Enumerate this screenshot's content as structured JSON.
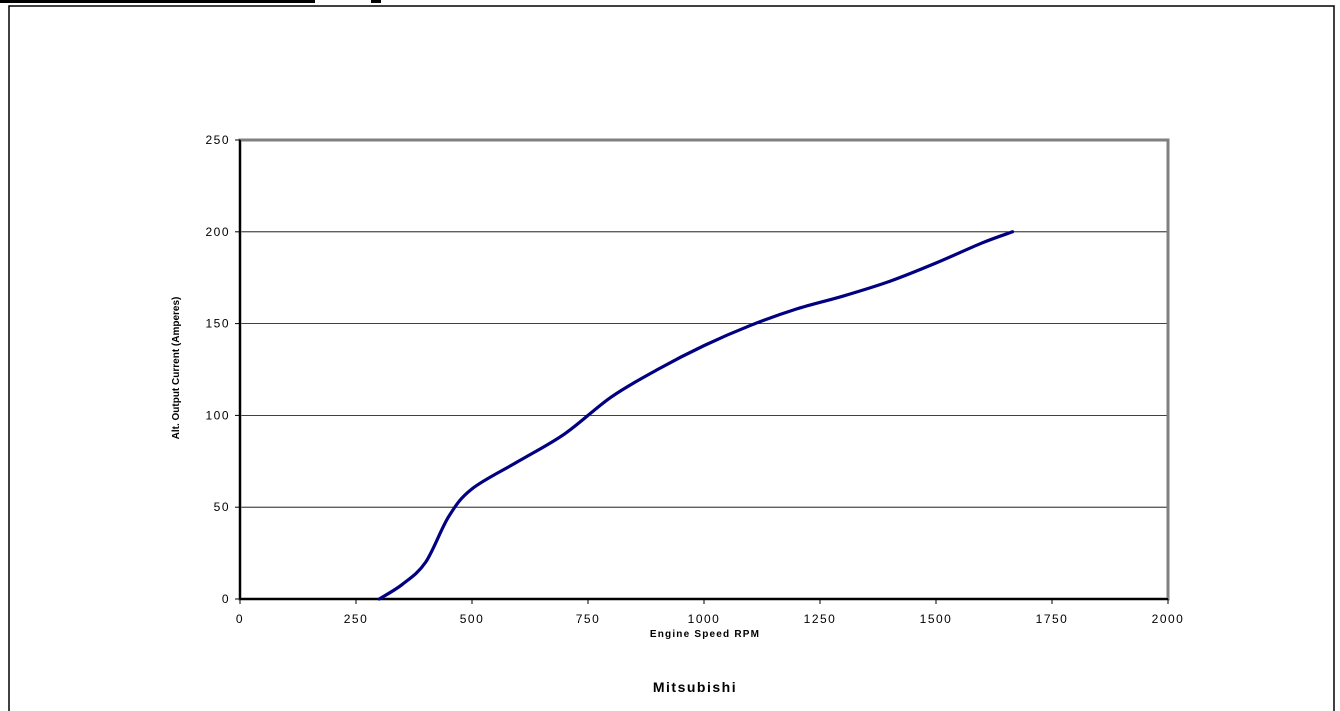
{
  "caption": "Mitsubishi",
  "chart_data": {
    "type": "line",
    "title": "",
    "xlabel": "Engine Speed RPM",
    "ylabel": "Alt. Output Current (Amperes)",
    "xlim": [
      0,
      2000
    ],
    "ylim": [
      0,
      250
    ],
    "x_ticks": [
      0,
      250,
      500,
      750,
      1000,
      1250,
      1500,
      1750,
      2000
    ],
    "y_ticks": [
      0,
      50,
      100,
      150,
      200,
      250
    ],
    "grid": "horizontal",
    "legend": "none",
    "series": [
      {
        "color": "#000080",
        "points": [
          [
            300,
            0
          ],
          [
            350,
            8
          ],
          [
            400,
            20
          ],
          [
            450,
            45
          ],
          [
            500,
            60
          ],
          [
            600,
            75
          ],
          [
            700,
            90
          ],
          [
            800,
            110
          ],
          [
            900,
            125
          ],
          [
            1000,
            138
          ],
          [
            1100,
            149
          ],
          [
            1200,
            158
          ],
          [
            1300,
            165
          ],
          [
            1400,
            173
          ],
          [
            1500,
            183
          ],
          [
            1600,
            194
          ],
          [
            1665,
            200
          ]
        ]
      }
    ]
  }
}
